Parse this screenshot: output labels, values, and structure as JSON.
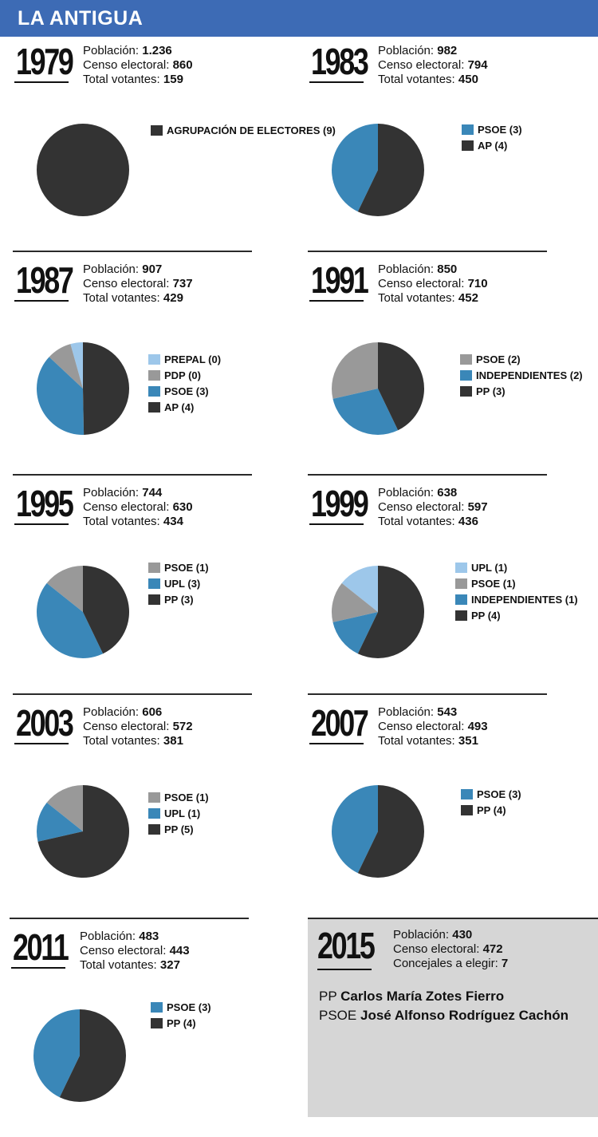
{
  "title": "LA ANTIGUA",
  "labels": {
    "poblacion": "Población:",
    "censo": "Censo electoral:",
    "votantes": "Total votantes:",
    "concejales": "Concejales a elegir:"
  },
  "colors": {
    "dark": "#333333",
    "blue": "#3a87b8",
    "gray": "#999999",
    "light": "#9dc7ea"
  },
  "chart_data": [
    {
      "type": "pie",
      "year": "1979",
      "poblacion": "1.236",
      "censo": "860",
      "votantes": "159",
      "slices": [
        {
          "label": "AGRUPACIÓN DE ELECTORES (9)",
          "value": 9,
          "color": "#333333"
        }
      ]
    },
    {
      "type": "pie",
      "year": "1983",
      "poblacion": "982",
      "censo": "794",
      "votantes": "450",
      "slices": [
        {
          "label": "PSOE (3)",
          "value": 3,
          "color": "#3a87b8"
        },
        {
          "label": "AP (4)",
          "value": 4,
          "color": "#333333"
        }
      ]
    },
    {
      "type": "pie",
      "year": "1987",
      "poblacion": "907",
      "censo": "737",
      "votantes": "429",
      "slices": [
        {
          "label": "PREPAL (0)",
          "value": 0.35,
          "color": "#9dc7ea"
        },
        {
          "label": "PDP (0)",
          "value": 0.7,
          "color": "#999999"
        },
        {
          "label": "PSOE (3)",
          "value": 3,
          "color": "#3a87b8"
        },
        {
          "label": "AP (4)",
          "value": 4,
          "color": "#333333"
        }
      ]
    },
    {
      "type": "pie",
      "year": "1991",
      "poblacion": "850",
      "censo": "710",
      "votantes": "452",
      "slices": [
        {
          "label": "PSOE (2)",
          "value": 2,
          "color": "#999999"
        },
        {
          "label": "INDEPENDIENTES (2)",
          "value": 2,
          "color": "#3a87b8"
        },
        {
          "label": "PP (3)",
          "value": 3,
          "color": "#333333"
        }
      ]
    },
    {
      "type": "pie",
      "year": "1995",
      "poblacion": "744",
      "censo": "630",
      "votantes": "434",
      "slices": [
        {
          "label": "PSOE (1)",
          "value": 1,
          "color": "#999999"
        },
        {
          "label": "UPL (3)",
          "value": 3,
          "color": "#3a87b8"
        },
        {
          "label": "PP (3)",
          "value": 3,
          "color": "#333333"
        }
      ]
    },
    {
      "type": "pie",
      "year": "1999",
      "poblacion": "638",
      "censo": "597",
      "votantes": "436",
      "slices": [
        {
          "label": "UPL (1)",
          "value": 1,
          "color": "#9dc7ea"
        },
        {
          "label": "PSOE (1)",
          "value": 1,
          "color": "#999999"
        },
        {
          "label": "INDEPENDIENTES (1)",
          "value": 1,
          "color": "#3a87b8"
        },
        {
          "label": "PP (4)",
          "value": 4,
          "color": "#333333"
        }
      ]
    },
    {
      "type": "pie",
      "year": "2003",
      "poblacion": "606",
      "censo": "572",
      "votantes": "381",
      "slices": [
        {
          "label": "PSOE (1)",
          "value": 1,
          "color": "#999999"
        },
        {
          "label": "UPL (1)",
          "value": 1,
          "color": "#3a87b8"
        },
        {
          "label": "PP (5)",
          "value": 5,
          "color": "#333333"
        }
      ]
    },
    {
      "type": "pie",
      "year": "2007",
      "poblacion": "543",
      "censo": "493",
      "votantes": "351",
      "slices": [
        {
          "label": "PSOE (3)",
          "value": 3,
          "color": "#3a87b8"
        },
        {
          "label": "PP (4)",
          "value": 4,
          "color": "#333333"
        }
      ]
    },
    {
      "type": "pie",
      "year": "2011",
      "poblacion": "483",
      "censo": "443",
      "votantes": "327",
      "slices": [
        {
          "label": "PSOE (3)",
          "value": 3,
          "color": "#3a87b8"
        },
        {
          "label": "PP (4)",
          "value": 4,
          "color": "#333333"
        }
      ]
    }
  ],
  "y2015": {
    "year": "2015",
    "poblacion": "430",
    "censo": "472",
    "concejales": "7",
    "candidates": [
      {
        "party": "PP",
        "name": "Carlos María Zotes Fierro"
      },
      {
        "party": "PSOE",
        "name": "José Alfonso Rodríguez Cachón"
      }
    ]
  }
}
